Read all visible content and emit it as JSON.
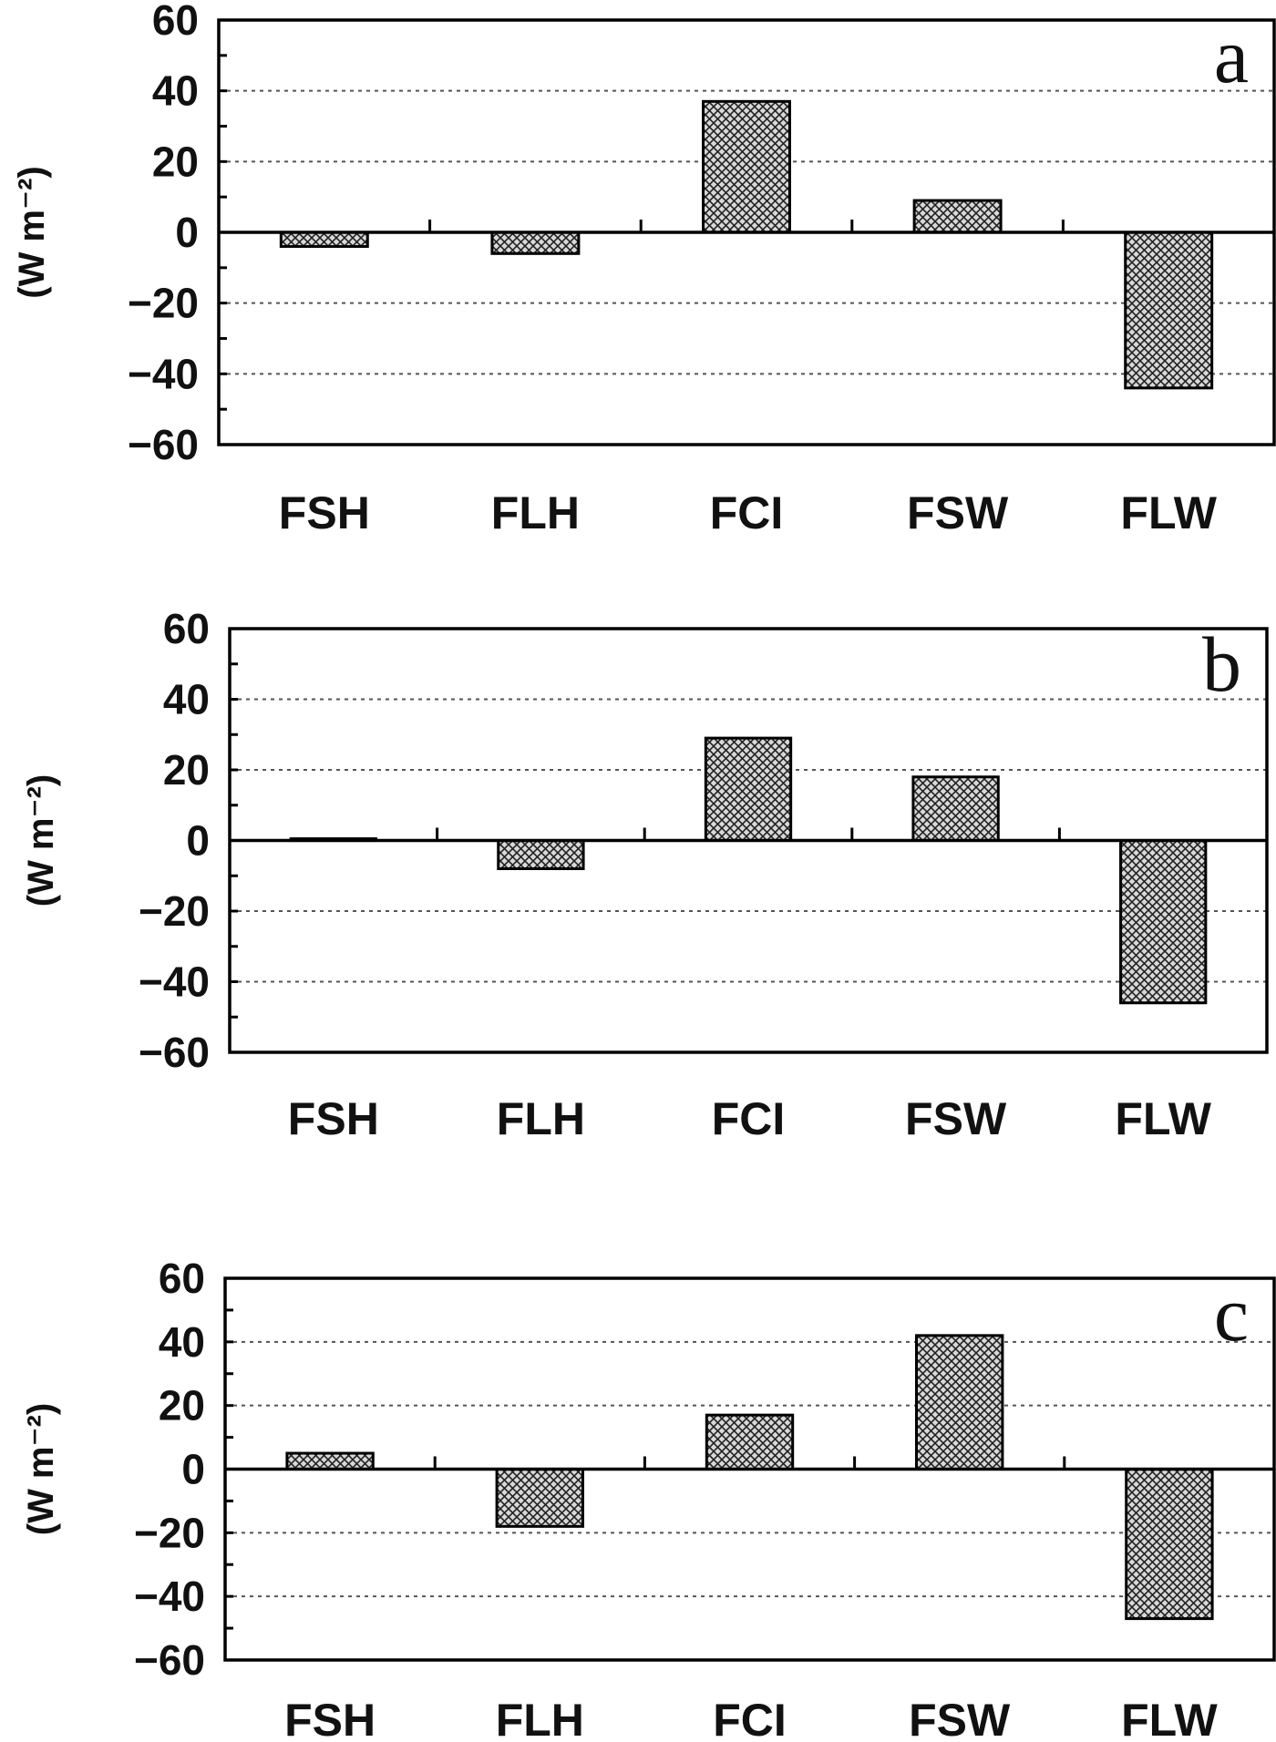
{
  "chart_data": [
    {
      "type": "bar",
      "panel_label": "a",
      "categories": [
        "FSH",
        "FLH",
        "FCI",
        "FSW",
        "FLW"
      ],
      "values": [
        -4,
        -6,
        37,
        9,
        -44
      ],
      "ylabel": "(W m⁻²)",
      "ylim": [
        -60,
        60
      ],
      "yticks": [
        "60",
        "40",
        "20",
        "0",
        "−20",
        "−40",
        "−60"
      ],
      "grid": true
    },
    {
      "type": "bar",
      "panel_label": "b",
      "categories": [
        "FSH",
        "FLH",
        "FCI",
        "FSW",
        "FLW"
      ],
      "values": [
        0.5,
        -8,
        29,
        18,
        -46
      ],
      "ylabel": "(W m⁻²)",
      "ylim": [
        -60,
        60
      ],
      "yticks": [
        "60",
        "40",
        "20",
        "0",
        "−20",
        "−40",
        "−60"
      ],
      "grid": true
    },
    {
      "type": "bar",
      "panel_label": "c",
      "categories": [
        "FSH",
        "FLH",
        "FCI",
        "FSW",
        "FLW"
      ],
      "values": [
        5,
        -18,
        17,
        42,
        -47
      ],
      "ylabel": "(W m⁻²)",
      "ylim": [
        -60,
        60
      ],
      "yticks": [
        "60",
        "40",
        "20",
        "0",
        "−20",
        "−40",
        "−60"
      ],
      "grid": true
    }
  ],
  "colors": {
    "bar_fill": "#d8d8d8",
    "hatch": "#222222",
    "axis": "#000000",
    "grid": "#555555"
  }
}
